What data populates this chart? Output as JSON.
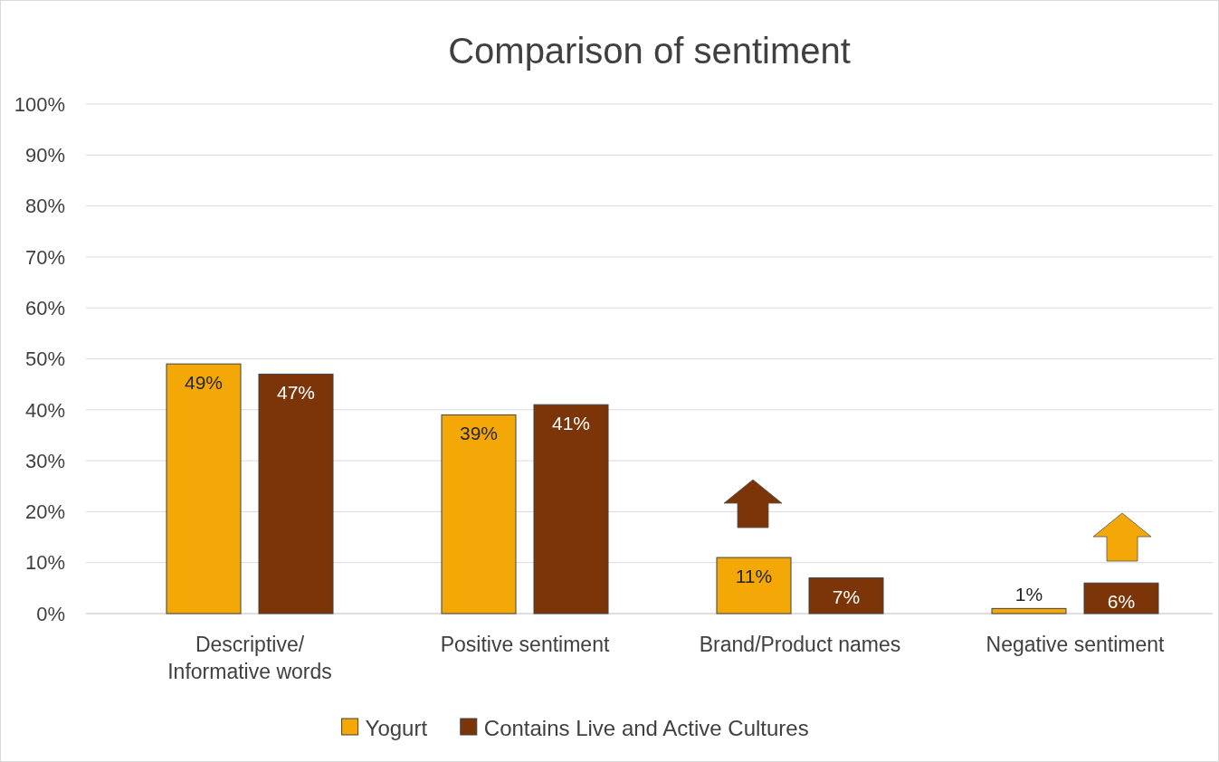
{
  "chart_data": {
    "type": "bar",
    "title": "Comparison of sentiment",
    "categories": [
      "Descriptive/ Informative words",
      "Positive sentiment",
      "Brand/Product names",
      "Negative sentiment"
    ],
    "series": [
      {
        "name": "Yogurt",
        "color": "#f4a807",
        "values": [
          49,
          39,
          11,
          1
        ]
      },
      {
        "name": "Contains Live and Active Cultures",
        "color": "#7b3508",
        "values": [
          47,
          41,
          7,
          6
        ]
      }
    ],
    "ylim": [
      0,
      100
    ],
    "yticks": [
      {
        "value": 0,
        "label": "0%"
      },
      {
        "value": 10,
        "label": "10%"
      },
      {
        "value": 20,
        "label": "20%"
      },
      {
        "value": 30,
        "label": "30%"
      },
      {
        "value": 40,
        "label": "40%"
      },
      {
        "value": 50,
        "label": "50%"
      },
      {
        "value": 60,
        "label": "60%"
      },
      {
        "value": 70,
        "label": "70%"
      },
      {
        "value": 80,
        "label": "80%"
      },
      {
        "value": 90,
        "label": "90%"
      },
      {
        "value": 100,
        "label": "100%"
      }
    ],
    "value_labels": [
      [
        "49%",
        "39%",
        "11%",
        "1%"
      ],
      [
        "47%",
        "41%",
        "7%",
        "6%"
      ]
    ],
    "grid": "y",
    "legend": "bottom"
  }
}
